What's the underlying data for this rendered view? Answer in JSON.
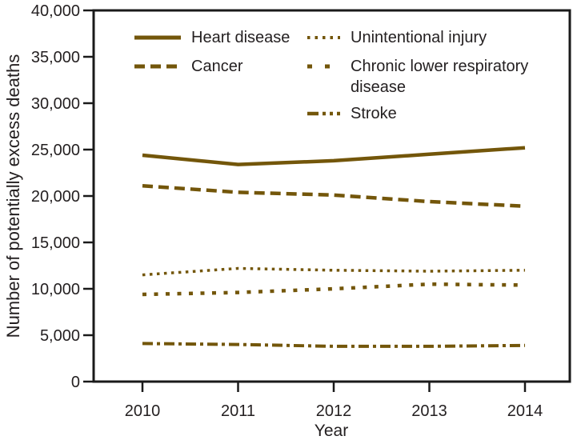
{
  "chart_data": {
    "type": "line",
    "title": "",
    "xlabel": "Year",
    "ylabel": "Number of potentially excess deaths",
    "x": [
      2010,
      2011,
      2012,
      2013,
      2014
    ],
    "x_tick_labels": [
      "2010",
      "2011",
      "2012",
      "2013",
      "2014"
    ],
    "y_tick_labels": [
      "0",
      "5,000",
      "10,000",
      "15,000",
      "20,000",
      "25,000",
      "30,000",
      "35,000",
      "40,000"
    ],
    "ylim": [
      0,
      40000
    ],
    "y_tick_step": 5000,
    "grid": false,
    "legend_position": "top-inside-two-columns",
    "line_color": "#73560a",
    "axis_color": "#1a1a1a",
    "text_color": "#231f20",
    "series": [
      {
        "name": "Heart disease",
        "dash": "solid",
        "values": [
          24400,
          23400,
          23800,
          24500,
          25200
        ]
      },
      {
        "name": "Cancer",
        "dash": "dashed",
        "values": [
          21100,
          20400,
          20100,
          19400,
          18900
        ]
      },
      {
        "name": "Unintentional injury",
        "dash": "dotted",
        "values": [
          11500,
          12200,
          12000,
          11900,
          12000
        ]
      },
      {
        "name": "Chronic lower respiratory disease",
        "dash": "square-dash",
        "values": [
          9400,
          9600,
          10000,
          10500,
          10400
        ]
      },
      {
        "name": "Stroke",
        "dash": "dash-dot",
        "values": [
          4100,
          4000,
          3800,
          3800,
          3900
        ]
      }
    ]
  }
}
